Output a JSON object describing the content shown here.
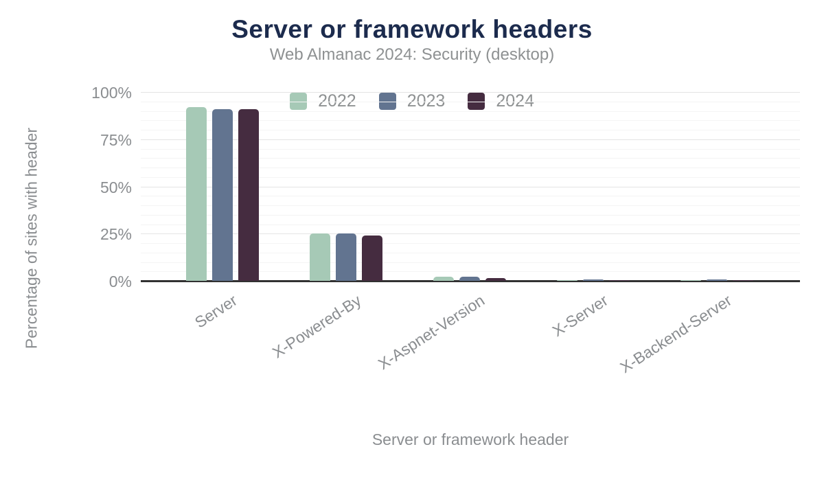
{
  "chart_data": {
    "type": "bar",
    "title": "Server or framework headers",
    "subtitle": "Web Almanac 2024: Security (desktop)",
    "xlabel": "Server or framework header",
    "ylabel": "Percentage of sites with header",
    "categories": [
      "Server",
      "X-Powered-By",
      "X-Aspnet-Version",
      "X-Server",
      "X-Backend-Server"
    ],
    "series": [
      {
        "name": "2022",
        "color": "#a6c9b6",
        "values": [
          92,
          25,
          2.2,
          0.5,
          0.4
        ]
      },
      {
        "name": "2023",
        "color": "#627490",
        "values": [
          91,
          25,
          2.1,
          0.6,
          0.6
        ]
      },
      {
        "name": "2024",
        "color": "#452c40",
        "values": [
          91,
          24,
          1.3,
          0.4,
          0.5
        ]
      }
    ],
    "ylim": [
      0,
      100
    ],
    "yticks": [
      {
        "value": 0,
        "label": "0%"
      },
      {
        "value": 25,
        "label": "25%"
      },
      {
        "value": 50,
        "label": "50%"
      },
      {
        "value": 75,
        "label": "75%"
      },
      {
        "value": 100,
        "label": "100%"
      }
    ],
    "grid": {
      "minor_step_percent": 5,
      "major_step_percent": 25,
      "shown": true
    },
    "legend_position": "top-center",
    "colors": {
      "title": "#1c2b4d",
      "subtitle": "#8e9192",
      "axis_text": "#8a8d90",
      "axis_line": "#313131",
      "grid_major": "#e4e4e4",
      "grid_minor": "#f4f4f4",
      "background": "#ffffff"
    }
  }
}
